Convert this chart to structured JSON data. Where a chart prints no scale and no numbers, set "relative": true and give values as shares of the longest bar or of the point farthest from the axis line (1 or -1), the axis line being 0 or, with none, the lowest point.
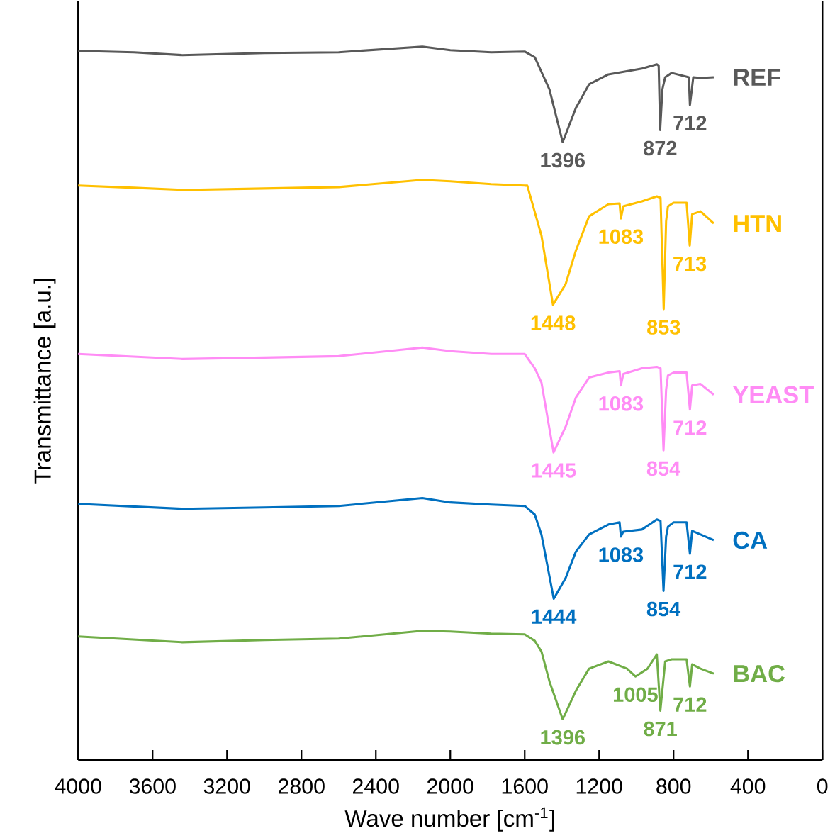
{
  "chart_data": {
    "type": "line",
    "relative": true,
    "xlabel": "Wave number [cm$^{-1}$]",
    "ylabel": "Transmittance [a.u.]",
    "xlim": [
      4000,
      0
    ],
    "xticks": [
      4000,
      3600,
      3200,
      2800,
      2400,
      2000,
      1600,
      1200,
      800,
      400,
      0
    ],
    "grid": false,
    "marker": "none",
    "line_style": "solid",
    "series": [
      {
        "name": "REF",
        "color": "#595959",
        "x": [
          4000,
          3700,
          3440,
          3000,
          2600,
          2150,
          2000,
          1780,
          1600,
          1546,
          1467,
          1396,
          1325,
          1254,
          1150,
          970,
          890,
          880,
          872,
          860,
          845,
          810,
          718,
          712,
          694,
          655,
          584
        ],
        "values": [
          0.994,
          0.992,
          0.988,
          0.991,
          0.992,
          1.0,
          0.995,
          0.992,
          0.993,
          0.985,
          0.94,
          0.866,
          0.914,
          0.947,
          0.961,
          0.969,
          0.975,
          0.973,
          0.883,
          0.94,
          0.957,
          0.963,
          0.957,
          0.918,
          0.957,
          0.956,
          0.957
        ]
      },
      {
        "name": "HTN",
        "color": "#ffc000",
        "x": [
          4000,
          3700,
          3440,
          3000,
          2600,
          2150,
          2000,
          1780,
          1600,
          1586,
          1510,
          1448,
          1380,
          1325,
          1254,
          1150,
          1090,
          1083,
          1070,
          970,
          890,
          870,
          853,
          840,
          830,
          800,
          730,
          713,
          700,
          655,
          584
        ],
        "values": [
          0.805,
          0.802,
          0.799,
          0.801,
          0.803,
          0.813,
          0.811,
          0.807,
          0.805,
          0.805,
          0.735,
          0.638,
          0.667,
          0.714,
          0.762,
          0.779,
          0.78,
          0.759,
          0.776,
          0.783,
          0.79,
          0.788,
          0.632,
          0.755,
          0.776,
          0.781,
          0.781,
          0.721,
          0.765,
          0.769,
          0.752
        ]
      },
      {
        "name": "YEAST",
        "color": "#ff8cf5",
        "x": [
          4000,
          3440,
          3000,
          2600,
          2150,
          2000,
          1780,
          1600,
          1546,
          1510,
          1445,
          1380,
          1325,
          1254,
          1150,
          1090,
          1083,
          1070,
          970,
          890,
          870,
          854,
          840,
          830,
          800,
          730,
          712,
          700,
          655,
          584
        ],
        "values": [
          0.569,
          0.562,
          0.564,
          0.566,
          0.578,
          0.573,
          0.569,
          0.569,
          0.549,
          0.529,
          0.431,
          0.467,
          0.508,
          0.536,
          0.543,
          0.545,
          0.525,
          0.541,
          0.549,
          0.551,
          0.549,
          0.434,
          0.519,
          0.539,
          0.543,
          0.543,
          0.491,
          0.525,
          0.527,
          0.512
        ]
      },
      {
        "name": "CA",
        "color": "#0070c0",
        "x": [
          4000,
          3440,
          3000,
          2600,
          2150,
          2000,
          1780,
          1600,
          1546,
          1510,
          1444,
          1380,
          1325,
          1254,
          1150,
          1090,
          1083,
          1070,
          970,
          890,
          870,
          854,
          840,
          830,
          800,
          730,
          712,
          700,
          655,
          584
        ],
        "values": [
          0.359,
          0.352,
          0.354,
          0.356,
          0.367,
          0.361,
          0.358,
          0.356,
          0.344,
          0.316,
          0.226,
          0.255,
          0.292,
          0.316,
          0.33,
          0.333,
          0.313,
          0.32,
          0.323,
          0.337,
          0.335,
          0.237,
          0.313,
          0.327,
          0.333,
          0.333,
          0.289,
          0.321,
          0.316,
          0.308
        ]
      },
      {
        "name": "BAC",
        "color": "#70ad47",
        "x": [
          4000,
          3440,
          3000,
          2600,
          2150,
          2000,
          1780,
          1600,
          1546,
          1510,
          1467,
          1396,
          1325,
          1254,
          1150,
          1050,
          1005,
          940,
          890,
          871,
          845,
          810,
          730,
          712,
          700,
          655,
          584
        ],
        "values": [
          0.173,
          0.165,
          0.168,
          0.17,
          0.181,
          0.18,
          0.177,
          0.176,
          0.167,
          0.152,
          0.11,
          0.057,
          0.097,
          0.128,
          0.138,
          0.128,
          0.117,
          0.128,
          0.148,
          0.069,
          0.138,
          0.141,
          0.141,
          0.103,
          0.134,
          0.128,
          0.121
        ]
      }
    ],
    "annotations": [
      {
        "text": "1396",
        "x": 1396,
        "y": 0.866
      },
      {
        "text": "872",
        "x": 872,
        "y": 0.883
      },
      {
        "text": "712",
        "x": 712,
        "y": 0.918
      },
      {
        "text": "1448",
        "x": 1448,
        "y": 0.638
      },
      {
        "text": "1083",
        "x": 1083,
        "y": 0.759
      },
      {
        "text": "853",
        "x": 853,
        "y": 0.632
      },
      {
        "text": "713",
        "x": 713,
        "y": 0.721
      },
      {
        "text": "1445",
        "x": 1445,
        "y": 0.431
      },
      {
        "text": "1083",
        "x": 1083,
        "y": 0.525
      },
      {
        "text": "854",
        "x": 854,
        "y": 0.434
      },
      {
        "text": "712",
        "x": 712,
        "y": 0.491
      },
      {
        "text": "1444",
        "x": 1444,
        "y": 0.226
      },
      {
        "text": "1083",
        "x": 1083,
        "y": 0.313
      },
      {
        "text": "854",
        "x": 854,
        "y": 0.237
      },
      {
        "text": "712",
        "x": 712,
        "y": 0.289
      },
      {
        "text": "1396",
        "x": 1396,
        "y": 0.057
      },
      {
        "text": "1005",
        "x": 1005,
        "y": 0.117
      },
      {
        "text": "871",
        "x": 871,
        "y": 0.069
      },
      {
        "text": "712",
        "x": 712,
        "y": 0.103
      }
    ]
  }
}
